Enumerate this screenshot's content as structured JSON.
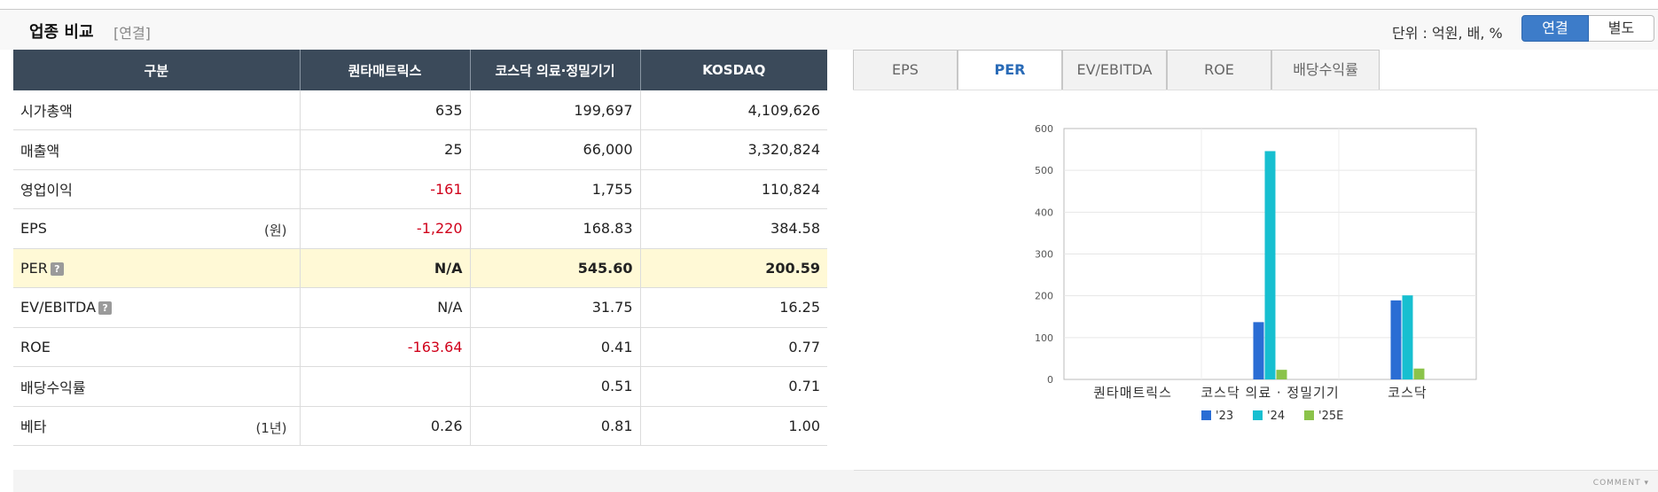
{
  "header": {
    "title": "업종 비교",
    "subtitle": "[연결]",
    "unit_text": "단위 : 억원, 배, %",
    "toggle_on": "연결",
    "toggle_off": "별도"
  },
  "table": {
    "columns": [
      "구분",
      "퀀타매트릭스",
      "코스닥 의료·정밀기기",
      "KOSDAQ"
    ],
    "rows": [
      {
        "label": "시가총액",
        "note": "",
        "help": false,
        "values": [
          "635",
          "199,697",
          "4,109,626"
        ],
        "neg": [
          false,
          false,
          false
        ]
      },
      {
        "label": "매출액",
        "note": "",
        "help": false,
        "values": [
          "25",
          "66,000",
          "3,320,824"
        ],
        "neg": [
          false,
          false,
          false
        ]
      },
      {
        "label": "영업이익",
        "note": "",
        "help": false,
        "values": [
          "-161",
          "1,755",
          "110,824"
        ],
        "neg": [
          true,
          false,
          false
        ]
      },
      {
        "label": "EPS",
        "note": "(원)",
        "help": false,
        "values": [
          "-1,220",
          "168.83",
          "384.58"
        ],
        "neg": [
          true,
          false,
          false
        ]
      },
      {
        "label": "PER",
        "note": "",
        "help": true,
        "values": [
          "N/A",
          "545.60",
          "200.59"
        ],
        "neg": [
          false,
          false,
          false
        ],
        "highlight": true
      },
      {
        "label": "EV/EBITDA",
        "note": "",
        "help": true,
        "values": [
          "N/A",
          "31.75",
          "16.25"
        ],
        "neg": [
          false,
          false,
          false
        ]
      },
      {
        "label": "ROE",
        "note": "",
        "help": false,
        "values": [
          "-163.64",
          "0.41",
          "0.77"
        ],
        "neg": [
          true,
          false,
          false
        ]
      },
      {
        "label": "배당수익률",
        "note": "",
        "help": false,
        "values": [
          "",
          "0.51",
          "0.71"
        ],
        "neg": [
          false,
          false,
          false
        ]
      },
      {
        "label": "베타",
        "note": "(1년)",
        "help": false,
        "values": [
          "0.26",
          "0.81",
          "1.00"
        ],
        "neg": [
          false,
          false,
          false
        ]
      }
    ],
    "help_glyph": "?"
  },
  "tabs": [
    "EPS",
    "PER",
    "EV/EBITDA",
    "ROE",
    "배당수익률"
  ],
  "active_tab": "PER",
  "colors": {
    "s23": "#2a6dd4",
    "s24": "#17bfd0",
    "s25": "#8bc34a",
    "negative": "#d0021b"
  },
  "chart_data": {
    "type": "bar",
    "categories": [
      "퀀타매트릭스",
      "코스닥 의료 · 정밀기기",
      "코스닥"
    ],
    "series": [
      {
        "name": "'23",
        "values": [
          null,
          137,
          189
        ]
      },
      {
        "name": "'24",
        "values": [
          null,
          546,
          201
        ]
      },
      {
        "name": "'25E",
        "values": [
          null,
          23,
          26
        ]
      }
    ],
    "ylim": [
      0,
      600
    ],
    "yticks": [
      0,
      100,
      200,
      300,
      400,
      500,
      600
    ],
    "grid": true,
    "legend": "bottom"
  },
  "footer": {
    "comment": "COMMENT"
  }
}
